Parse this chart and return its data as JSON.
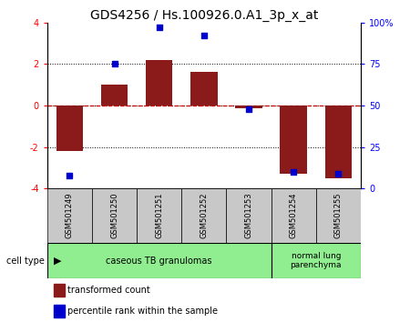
{
  "title": "GDS4256 / Hs.100926.0.A1_3p_x_at",
  "samples": [
    "GSM501249",
    "GSM501250",
    "GSM501251",
    "GSM501252",
    "GSM501253",
    "GSM501254",
    "GSM501255"
  ],
  "transformed_count": [
    -2.2,
    1.0,
    2.2,
    1.6,
    -0.15,
    -3.3,
    -3.5
  ],
  "percentile_rank": [
    8,
    75,
    97,
    92,
    48,
    10,
    9
  ],
  "ylim_left": [
    -4,
    4
  ],
  "ylim_right": [
    0,
    100
  ],
  "yticks_left": [
    -4,
    -2,
    0,
    2,
    4
  ],
  "yticks_right": [
    0,
    25,
    50,
    75,
    100
  ],
  "ytick_labels_right": [
    "0",
    "25",
    "50",
    "75",
    "100%"
  ],
  "bar_color": "#8B1A1A",
  "dot_color": "#0000CD",
  "zero_line_color": "#CC0000",
  "gridline_color": "#000000",
  "sample_box_color": "#C8C8C8",
  "cell_type_color": "#90EE90",
  "legend_bar_label": "transformed count",
  "legend_dot_label": "percentile rank within the sample",
  "cell_type_label": "cell type",
  "group1_label": "caseous TB granulomas",
  "group2_label": "normal lung\nparenchyma",
  "group1_count": 5,
  "group2_count": 2,
  "title_fontsize": 10,
  "tick_fontsize": 7,
  "sample_fontsize": 6,
  "celltype_fontsize": 7,
  "legend_fontsize": 7
}
